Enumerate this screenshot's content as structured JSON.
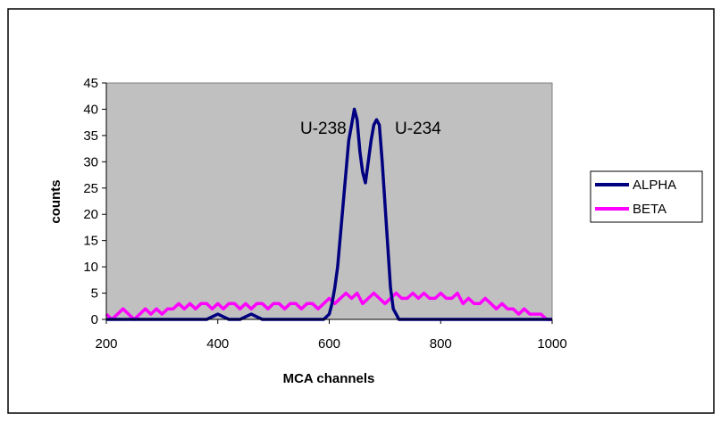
{
  "chart_data": {
    "type": "line",
    "title": "",
    "xlabel": "MCA channels",
    "ylabel": "counts",
    "xlim": [
      200,
      1000
    ],
    "ylim": [
      0,
      45
    ],
    "x_ticks": [
      "200",
      "400",
      "600",
      "800",
      "1000"
    ],
    "y_ticks": [
      "0",
      "5",
      "10",
      "15",
      "20",
      "25",
      "30",
      "35",
      "40",
      "45"
    ],
    "grid": false,
    "plot_background": "#c0c0c0",
    "legend_position": "right",
    "series": [
      {
        "name": "ALPHA",
        "color": "#000080",
        "x": [
          200,
          220,
          240,
          260,
          280,
          300,
          320,
          340,
          360,
          380,
          400,
          420,
          440,
          460,
          480,
          500,
          520,
          540,
          560,
          580,
          590,
          600,
          605,
          610,
          615,
          620,
          625,
          630,
          635,
          640,
          645,
          650,
          655,
          660,
          665,
          670,
          675,
          680,
          685,
          690,
          695,
          700,
          705,
          710,
          715,
          720,
          725,
          730,
          735,
          740,
          745,
          750,
          760,
          780,
          800,
          820,
          840,
          860,
          880,
          900,
          920,
          940,
          960,
          980,
          1000
        ],
        "y": [
          0,
          0,
          0,
          0,
          0,
          0,
          0,
          0,
          0,
          0,
          1,
          0,
          0,
          1,
          0,
          0,
          0,
          0,
          0,
          0,
          0,
          1,
          3,
          6,
          10,
          16,
          22,
          28,
          34,
          37,
          40,
          38,
          32,
          28,
          26,
          30,
          34,
          37,
          38,
          37,
          30,
          22,
          14,
          6,
          2,
          1,
          0,
          0,
          0,
          0,
          0,
          0,
          0,
          0,
          0,
          0,
          0,
          0,
          0,
          0,
          0,
          0,
          0,
          0,
          0
        ]
      },
      {
        "name": "BETA",
        "color": "#ff00ff",
        "x": [
          200,
          210,
          220,
          230,
          240,
          250,
          260,
          270,
          280,
          290,
          300,
          310,
          320,
          330,
          340,
          350,
          360,
          370,
          380,
          390,
          400,
          410,
          420,
          430,
          440,
          450,
          460,
          470,
          480,
          490,
          500,
          510,
          520,
          530,
          540,
          550,
          560,
          570,
          580,
          590,
          600,
          610,
          620,
          630,
          640,
          650,
          660,
          670,
          680,
          690,
          700,
          710,
          720,
          730,
          740,
          750,
          760,
          770,
          780,
          790,
          800,
          810,
          820,
          830,
          840,
          850,
          860,
          870,
          880,
          890,
          900,
          910,
          920,
          930,
          940,
          950,
          960,
          970,
          980,
          990,
          1000
        ],
        "y": [
          1,
          0,
          1,
          2,
          1,
          0,
          1,
          2,
          1,
          2,
          1,
          2,
          2,
          3,
          2,
          3,
          2,
          3,
          3,
          2,
          3,
          2,
          3,
          3,
          2,
          3,
          2,
          3,
          3,
          2,
          3,
          3,
          2,
          3,
          3,
          2,
          3,
          3,
          2,
          3,
          4,
          3,
          4,
          5,
          4,
          5,
          3,
          4,
          5,
          4,
          3,
          4,
          5,
          4,
          4,
          5,
          4,
          5,
          4,
          4,
          5,
          4,
          4,
          5,
          3,
          4,
          3,
          3,
          4,
          3,
          2,
          3,
          2,
          2,
          1,
          2,
          1,
          1,
          1,
          0,
          0
        ]
      }
    ],
    "annotations": [
      "U-238",
      "U-234"
    ]
  }
}
